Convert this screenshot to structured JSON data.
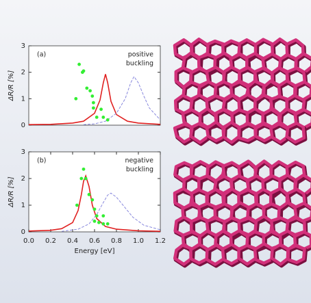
{
  "chart_data": [
    {
      "type": "line",
      "ylabel": "ΔR/R [%]",
      "annotation": {
        "label": "(a)",
        "text": [
          "positive",
          "buckling"
        ]
      },
      "xlim": [
        0,
        1.2
      ],
      "ylim": [
        0,
        3
      ],
      "yticks": [
        0,
        1,
        2,
        3
      ],
      "series": [
        {
          "style": "solid",
          "color": "#e02020",
          "x": [
            0,
            0.2,
            0.4,
            0.5,
            0.6,
            0.65,
            0.68,
            0.7,
            0.72,
            0.75,
            0.8,
            0.9,
            1.0,
            1.2
          ],
          "values": [
            0.02,
            0.03,
            0.08,
            0.15,
            0.45,
            0.95,
            1.6,
            1.93,
            1.6,
            0.9,
            0.4,
            0.15,
            0.08,
            0.03
          ]
        },
        {
          "style": "dashed",
          "color": "#8888dd",
          "x": [
            0.5,
            0.6,
            0.7,
            0.8,
            0.88,
            0.93,
            0.96,
            1.0,
            1.05,
            1.1,
            1.2
          ],
          "values": [
            0.02,
            0.05,
            0.15,
            0.45,
            1.0,
            1.6,
            1.84,
            1.6,
            1.1,
            0.65,
            0.2
          ]
        },
        {
          "style": "scatter",
          "color": "#33ee33",
          "x": [
            0.46,
            0.49,
            0.5,
            0.53,
            0.56,
            0.58,
            0.59,
            0.59,
            0.62,
            0.66,
            0.68,
            0.72,
            0.43
          ],
          "values": [
            2.3,
            2.0,
            2.05,
            1.4,
            1.3,
            1.1,
            0.85,
            0.65,
            0.3,
            0.6,
            0.3,
            0.2,
            1.0
          ]
        }
      ]
    },
    {
      "type": "line",
      "ylabel": "ΔR/R [%]",
      "xlabel": "Energy [eV]",
      "annotation": {
        "label": "(b)",
        "text": [
          "negative",
          "buckling"
        ]
      },
      "xlim": [
        0,
        1.2
      ],
      "ylim": [
        0,
        3
      ],
      "yticks": [
        0,
        1,
        2,
        3
      ],
      "xticks": [
        {
          "value": 0,
          "label": "0.0"
        },
        0.2,
        0.4,
        0.6,
        0.8,
        {
          "value": 1,
          "label": "1.0"
        },
        1.2
      ],
      "series": [
        {
          "style": "solid",
          "color": "#e02020",
          "x": [
            0,
            0.2,
            0.3,
            0.4,
            0.45,
            0.48,
            0.5,
            0.52,
            0.55,
            0.58,
            0.62,
            0.7,
            0.8,
            1.0,
            1.2
          ],
          "values": [
            0.03,
            0.06,
            0.12,
            0.35,
            0.8,
            1.4,
            1.9,
            2.1,
            1.7,
            1.0,
            0.5,
            0.2,
            0.1,
            0.04,
            0.02
          ]
        },
        {
          "style": "dashed",
          "color": "#8888dd",
          "x": [
            0.3,
            0.45,
            0.55,
            0.62,
            0.68,
            0.72,
            0.75,
            0.8,
            0.88,
            0.95,
            1.05,
            1.2
          ],
          "values": [
            0.02,
            0.1,
            0.3,
            0.65,
            1.1,
            1.38,
            1.45,
            1.3,
            0.9,
            0.55,
            0.25,
            0.08
          ]
        },
        {
          "style": "scatter",
          "color": "#33ee33",
          "x": [
            0.5,
            0.48,
            0.52,
            0.44,
            0.55,
            0.58,
            0.6,
            0.62,
            0.64,
            0.68,
            0.68,
            0.72,
            0.6
          ],
          "values": [
            2.35,
            2.0,
            2.0,
            1.0,
            1.4,
            1.2,
            0.85,
            0.6,
            0.35,
            0.6,
            0.3,
            0.3,
            0.4
          ]
        }
      ]
    }
  ]
}
